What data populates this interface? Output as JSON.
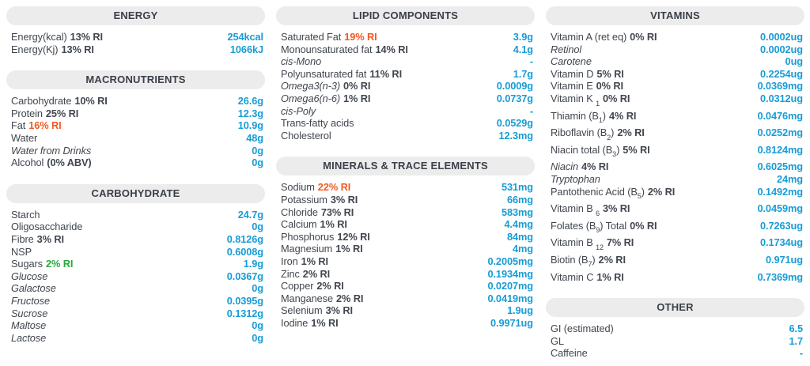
{
  "colors": {
    "value_blue": "#189cd6",
    "accent_orange": "#f4591f",
    "accent_green": "#27a83c",
    "label_text": "#41464f",
    "header_bg": "#ececec",
    "header_text": "#3a3f49"
  },
  "columns": [
    {
      "sections": [
        {
          "title": "ENERGY",
          "rows": [
            {
              "name": "Energy(kcal)",
              "ri": "13% RI",
              "value": "254kcal"
            },
            {
              "name": "Energy(Kj)",
              "ri": "13% RI",
              "value": "1066kJ"
            }
          ]
        },
        {
          "title": "MACRONUTRIENTS",
          "rows": [
            {
              "name": "Carbohydrate",
              "ri": "10% RI",
              "value": "26.6g"
            },
            {
              "name": "Protein",
              "ri": "25% RI",
              "value": "12.3g"
            },
            {
              "name": "Fat",
              "ri": "16% RI",
              "ri_color": "orange",
              "value": "10.9g"
            },
            {
              "name": "Water",
              "value": "48g"
            },
            {
              "name": "Water from Drinks",
              "italic": true,
              "value": "0g"
            },
            {
              "name": "Alcohol",
              "ri": "(0% ABV)",
              "value": "0g"
            }
          ]
        },
        {
          "title": "CARBOHYDRATE",
          "rows": [
            {
              "name": "Starch",
              "value": "24.7g"
            },
            {
              "name": "Oligosaccharide",
              "value": "0g"
            },
            {
              "name": "Fibre",
              "ri": "3% RI",
              "value": "0.8126g"
            },
            {
              "name": "NSP",
              "value": "0.6008g"
            },
            {
              "name": "Sugars",
              "ri": "2% RI",
              "ri_color": "green",
              "value": "1.9g"
            },
            {
              "name": "Glucose",
              "italic": true,
              "value": "0.0367g"
            },
            {
              "name": "Galactose",
              "italic": true,
              "value": "0g"
            },
            {
              "name": "Fructose",
              "italic": true,
              "value": "0.0395g"
            },
            {
              "name": "Sucrose",
              "italic": true,
              "value": "0.1312g"
            },
            {
              "name": "Maltose",
              "italic": true,
              "value": "0g"
            },
            {
              "name": "Lactose",
              "italic": true,
              "value": "0g"
            }
          ]
        }
      ]
    },
    {
      "sections": [
        {
          "title": "LIPID COMPONENTS",
          "rows": [
            {
              "name": "Saturated Fat",
              "ri": "19% RI",
              "ri_color": "orange",
              "value": "3.9g"
            },
            {
              "name": "Monounsaturated fat",
              "ri": "14% RI",
              "value": "4.1g"
            },
            {
              "name": "cis-Mono",
              "italic": true,
              "value": "-"
            },
            {
              "name": "Polyunsaturated fat",
              "ri": "11% RI",
              "value": "1.7g"
            },
            {
              "name": "Omega3(n-3)",
              "italic": true,
              "ri": "0% RI",
              "value": "0.0009g"
            },
            {
              "name": "Omega6(n-6)",
              "italic": true,
              "ri": "1% RI",
              "value": "0.0737g"
            },
            {
              "name": "cis-Poly",
              "italic": true,
              "value": "-"
            },
            {
              "name": "Trans-fatty acids",
              "value": "0.0529g"
            },
            {
              "name": "Cholesterol",
              "value": "12.3mg"
            }
          ]
        },
        {
          "title": "MINERALS & TRACE ELEMENTS",
          "rows": [
            {
              "name": "Sodium",
              "ri": "22% RI",
              "ri_color": "orange",
              "value": "531mg"
            },
            {
              "name": "Potassium",
              "ri": "3% RI",
              "value": "66mg"
            },
            {
              "name": "Chloride",
              "ri": "73% RI",
              "value": "583mg"
            },
            {
              "name": "Calcium",
              "ri": "1% RI",
              "value": "4.4mg"
            },
            {
              "name": "Phosphorus",
              "ri": "12% RI",
              "value": "84mg"
            },
            {
              "name": "Magnesium",
              "ri": "1% RI",
              "value": "4mg"
            },
            {
              "name": "Iron",
              "ri": "1% RI",
              "value": "0.2005mg"
            },
            {
              "name": "Zinc",
              "ri": "2% RI",
              "value": "0.1934mg"
            },
            {
              "name": "Copper",
              "ri": "2% RI",
              "value": "0.0207mg"
            },
            {
              "name": "Manganese",
              "ri": "2% RI",
              "value": "0.0419mg"
            },
            {
              "name": "Selenium",
              "ri": "3% RI",
              "value": "1.9ug"
            },
            {
              "name": "Iodine",
              "ri": "1% RI",
              "value": "0.9971ug"
            }
          ]
        }
      ]
    },
    {
      "sections": [
        {
          "title": "VITAMINS",
          "rows": [
            {
              "name": "Vitamin A (ret eq)",
              "ri": "0% RI",
              "value": "0.0002ug"
            },
            {
              "name": "Retinol",
              "italic": true,
              "value": "0.0002ug"
            },
            {
              "name": "Carotene",
              "italic": true,
              "value": "0ug"
            },
            {
              "name": "Vitamin D",
              "ri": "5% RI",
              "value": "0.2254ug"
            },
            {
              "name": "Vitamin E",
              "ri": "0% RI",
              "value": "0.0369mg"
            },
            {
              "name": "Vitamin K _{1}",
              "ri": "0% RI",
              "value": "0.0312ug"
            },
            {
              "name": "Thiamin (B_{1})",
              "ri": "4% RI",
              "value": "0.0476mg"
            },
            {
              "name": "Riboflavin (B_{2})",
              "ri": "2% RI",
              "value": "0.0252mg"
            },
            {
              "name": "Niacin total (B_{3})",
              "ri": "5% RI",
              "value": "0.8124mg"
            },
            {
              "name": "Niacin",
              "italic": true,
              "ri": "4% RI",
              "value": "0.6025mg"
            },
            {
              "name": "Tryptophan",
              "italic": true,
              "value": "24mg"
            },
            {
              "name": "Pantothenic Acid (B_{5})",
              "ri": "2% RI",
              "value": "0.1492mg"
            },
            {
              "name": "Vitamin B _{6}",
              "ri": "3% RI",
              "value": "0.0459mg"
            },
            {
              "name": "Folates (B_{9}) Total",
              "ri": "0% RI",
              "value": "0.7263ug"
            },
            {
              "name": "Vitamin B _{12}",
              "ri": "7% RI",
              "value": "0.1734ug"
            },
            {
              "name": "Biotin (B_{7})",
              "ri": "2% RI",
              "value": "0.971ug"
            },
            {
              "name": "Vitamin C",
              "ri": "1% RI",
              "value": "0.7369mg"
            }
          ]
        },
        {
          "title": "OTHER",
          "rows": [
            {
              "name": "GI (estimated)",
              "value": "6.5"
            },
            {
              "name": "GL",
              "value": "1.7"
            },
            {
              "name": "Caffeine",
              "value": "-"
            }
          ]
        }
      ]
    }
  ]
}
